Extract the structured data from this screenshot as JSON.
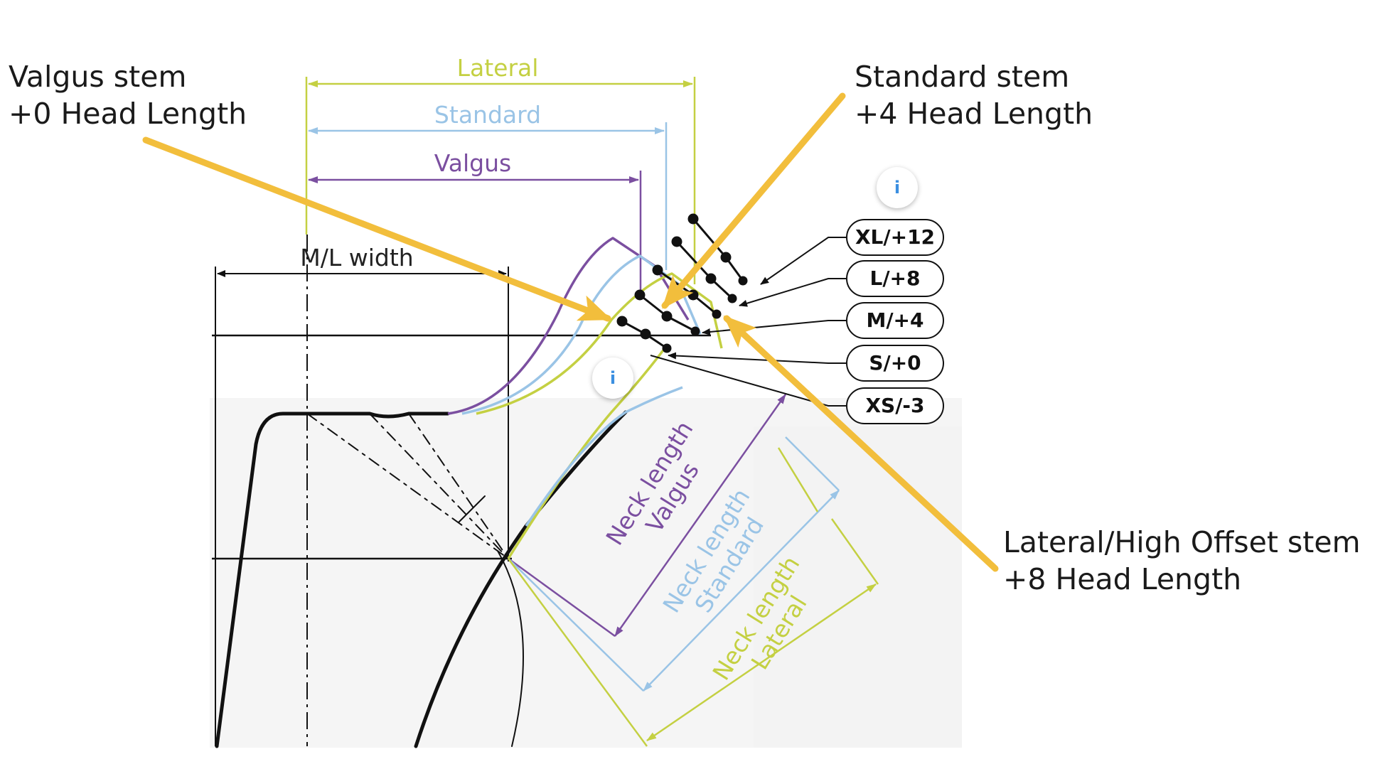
{
  "callouts": {
    "valgus": {
      "line1": "Valgus stem",
      "line2": "+0 Head Length"
    },
    "standard": {
      "line1": "Standard stem",
      "line2": "+4 Head Length"
    },
    "lateral": {
      "line1": "Lateral/High Offset stem",
      "line2": "+8 Head Length"
    }
  },
  "dimensions": {
    "lateral": "Lateral",
    "standard": "Standard",
    "valgus": "Valgus",
    "ml_width": "M/L width"
  },
  "size_tags": [
    "XL/+12",
    "L/+8",
    "M/+4",
    "S/+0",
    "XS/-3"
  ],
  "neck_lengths": {
    "valgus": {
      "line1": "Neck length",
      "line2": "Valgus"
    },
    "standard": {
      "line1": "Neck length",
      "line2": "Standard"
    },
    "lateral": {
      "line1": "Neck length",
      "line2": "Lateral"
    }
  },
  "info_buttons": [
    "i",
    "i"
  ],
  "colors": {
    "lateral": "#c4d042",
    "standard": "#9ac4e6",
    "valgus": "#7b4fa0",
    "arrow": "#f2be3c",
    "outline": "#111111"
  },
  "icons": {
    "info": "info-icon"
  }
}
